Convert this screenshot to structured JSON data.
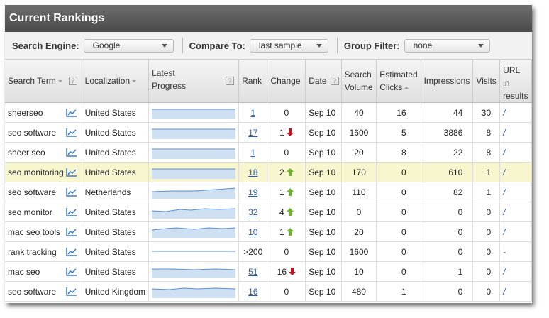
{
  "panel": {
    "title": "Current Rankings"
  },
  "filters": {
    "search_engine_label": "Search Engine:",
    "search_engine_value": "Google",
    "compare_label": "Compare To:",
    "compare_value": "last sample",
    "group_label": "Group Filter:",
    "group_value": "none"
  },
  "columns": {
    "search_term": "Search Term",
    "localization": "Localization",
    "latest_progress_1": "Latest",
    "latest_progress_2": "Progress",
    "rank": "Rank",
    "change": "Change",
    "date": "Date",
    "search_volume_1": "Search",
    "search_volume_2": "Volume",
    "estimated_clicks_1": "Estimated",
    "estimated_clicks_2": "Clicks",
    "impressions": "Impressions",
    "visits": "Visits",
    "url_1": "URL in",
    "url_2": "results"
  },
  "rows": [
    {
      "term": "sheerseo",
      "loc": "United States",
      "rank": "1",
      "change": "0",
      "dir": "",
      "date": "Sep 10",
      "volume": "40",
      "clicks": "16",
      "impressions": "44",
      "visits": "30",
      "url": "/",
      "spark": "flat",
      "highlight": false
    },
    {
      "term": "seo software",
      "loc": "United States",
      "rank": "17",
      "change": "1",
      "dir": "down",
      "date": "Sep 10",
      "volume": "1600",
      "clicks": "5",
      "impressions": "3886",
      "visits": "8",
      "url": "/",
      "spark": "flat",
      "highlight": false
    },
    {
      "term": "sheer seo",
      "loc": "United States",
      "rank": "1",
      "change": "0",
      "dir": "",
      "date": "Sep 10",
      "volume": "20",
      "clicks": "8",
      "impressions": "22",
      "visits": "8",
      "url": "/",
      "spark": "flat",
      "highlight": false
    },
    {
      "term": "seo monitoring",
      "loc": "United States",
      "rank": "18",
      "change": "2",
      "dir": "up",
      "date": "Sep 10",
      "volume": "170",
      "clicks": "0",
      "impressions": "610",
      "visits": "1",
      "url": "/",
      "spark": "flat",
      "highlight": true
    },
    {
      "term": "seo software",
      "loc": "Netherlands",
      "rank": "19",
      "change": "1",
      "dir": "up",
      "date": "Sep 10",
      "volume": "110",
      "clicks": "0",
      "impressions": "82",
      "visits": "1",
      "url": "/",
      "spark": "rise",
      "highlight": false
    },
    {
      "term": "seo monitor",
      "loc": "United States",
      "rank": "32",
      "change": "4",
      "dir": "up",
      "date": "Sep 10",
      "volume": "0",
      "clicks": "0",
      "impressions": "0",
      "visits": "0",
      "url": "/",
      "spark": "wave",
      "highlight": false
    },
    {
      "term": "mac seo tools",
      "loc": "United States",
      "rank": "10",
      "change": "1",
      "dir": "up",
      "date": "Sep 10",
      "volume": "20",
      "clicks": "0",
      "impressions": "0",
      "visits": "0",
      "url": "/",
      "spark": "bump",
      "highlight": false
    },
    {
      "term": "rank tracking",
      "loc": "United States",
      "rank": ">200",
      "change": "0",
      "dir": "",
      "date": "Sep 10",
      "volume": "1600",
      "clicks": "0",
      "impressions": "0",
      "visits": "0",
      "url": "-",
      "spark": "line",
      "highlight": false
    },
    {
      "term": "mac seo",
      "loc": "United States",
      "rank": "51",
      "change": "16",
      "dir": "down",
      "date": "Sep 10",
      "volume": "10",
      "clicks": "0",
      "impressions": "1",
      "visits": "0",
      "url": "/",
      "spark": "dip",
      "highlight": false
    },
    {
      "term": "seo software",
      "loc": "United Kingdom",
      "rank": "16",
      "change": "0",
      "dir": "",
      "date": "Sep 10",
      "volume": "480",
      "clicks": "1",
      "impressions": "0",
      "visits": "0",
      "url": "/",
      "spark": "wave2",
      "highlight": false
    }
  ],
  "colors": {
    "arrow_up": "#6bb52a",
    "arrow_down": "#c1121f",
    "spark_fill": "#cfe0f3",
    "spark_line": "#5b8fd0",
    "chart_icon": "#3b78c4"
  }
}
